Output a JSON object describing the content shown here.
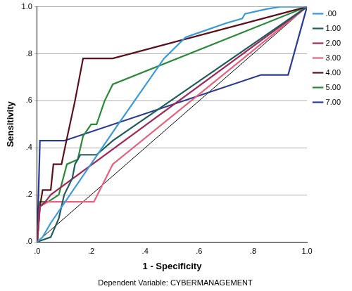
{
  "chart_data": {
    "type": "line",
    "marker": "none",
    "grid": "y",
    "legend": "right",
    "x_label": "1 - Specificity",
    "y_label": "Sensitivity",
    "annotations": [
      "Dependent Variable: CYBERMANAGEMENT"
    ],
    "xlim": [
      0,
      1
    ],
    "ylim": [
      0,
      1
    ],
    "xticks": [
      {
        "value": 0,
        "label": ".0"
      },
      {
        "value": 0.2,
        "label": ".2"
      },
      {
        "value": 0.4,
        "label": ".4"
      },
      {
        "value": 0.6,
        "label": ".6"
      },
      {
        "value": 0.8,
        "label": ".8"
      },
      {
        "value": 1,
        "label": "1.0"
      }
    ],
    "yticks": [
      {
        "value": 0,
        "label": ".0"
      },
      {
        "value": 0.2,
        "label": ".2"
      },
      {
        "value": 0.4,
        "label": ".4"
      },
      {
        "value": 0.6,
        "label": ".6"
      },
      {
        "value": 0.8,
        "label": ".8"
      },
      {
        "value": 1,
        "label": "1.0"
      }
    ],
    "series": [
      {
        "name": ".00",
        "color": "#3a9ad9",
        "x": [
          0,
          0.02,
          0.05,
          0.3,
          0.47,
          0.55,
          0.6,
          0.7,
          0.76,
          0.77,
          0.85,
          0.9,
          1
        ],
        "values": [
          0,
          0.02,
          0.08,
          0.5,
          0.78,
          0.87,
          0.89,
          0.93,
          0.95,
          0.97,
          0.99,
          1,
          1
        ]
      },
      {
        "name": "1.00",
        "color": "#1f5c5c",
        "x": [
          0,
          0.05,
          0.08,
          0.1,
          0.13,
          0.14,
          0.16,
          0.22,
          0.28,
          1
        ],
        "values": [
          0,
          0.02,
          0.1,
          0.2,
          0.27,
          0.33,
          0.37,
          0.37,
          0.43,
          1
        ]
      },
      {
        "name": "2.00",
        "color": "#a0285a",
        "x": [
          0,
          0.01,
          0.03,
          0.05,
          1
        ],
        "values": [
          0,
          0.15,
          0.17,
          0.2,
          1
        ]
      },
      {
        "name": "3.00",
        "color": "#e8607a",
        "x": [
          0,
          0.01,
          0.04,
          0.21,
          0.28,
          1
        ],
        "values": [
          0,
          0.15,
          0.17,
          0.17,
          0.33,
          1
        ]
      },
      {
        "name": "4.00",
        "color": "#5c0f1a",
        "x": [
          0,
          0.01,
          0.02,
          0.05,
          0.06,
          0.09,
          0.11,
          0.14,
          0.17,
          0.28,
          1
        ],
        "values": [
          0,
          0.15,
          0.22,
          0.22,
          0.33,
          0.33,
          0.44,
          0.6,
          0.78,
          0.78,
          1
        ]
      },
      {
        "name": "5.00",
        "color": "#2a8a3a",
        "x": [
          0,
          0.01,
          0.04,
          0.08,
          0.11,
          0.15,
          0.17,
          0.2,
          0.22,
          0.25,
          0.28,
          1
        ],
        "values": [
          0,
          0.17,
          0.17,
          0.2,
          0.33,
          0.35,
          0.45,
          0.5,
          0.5,
          0.6,
          0.67,
          1
        ]
      },
      {
        "name": "7.00",
        "color": "#2a3a9a",
        "x": [
          0,
          0.01,
          0.1,
          0.83,
          0.93,
          1
        ],
        "values": [
          0,
          0.43,
          0.43,
          0.71,
          0.71,
          1
        ]
      },
      {
        "name": null,
        "color": "#000000",
        "x": [
          0,
          1
        ],
        "values": [
          0,
          1
        ]
      }
    ]
  }
}
